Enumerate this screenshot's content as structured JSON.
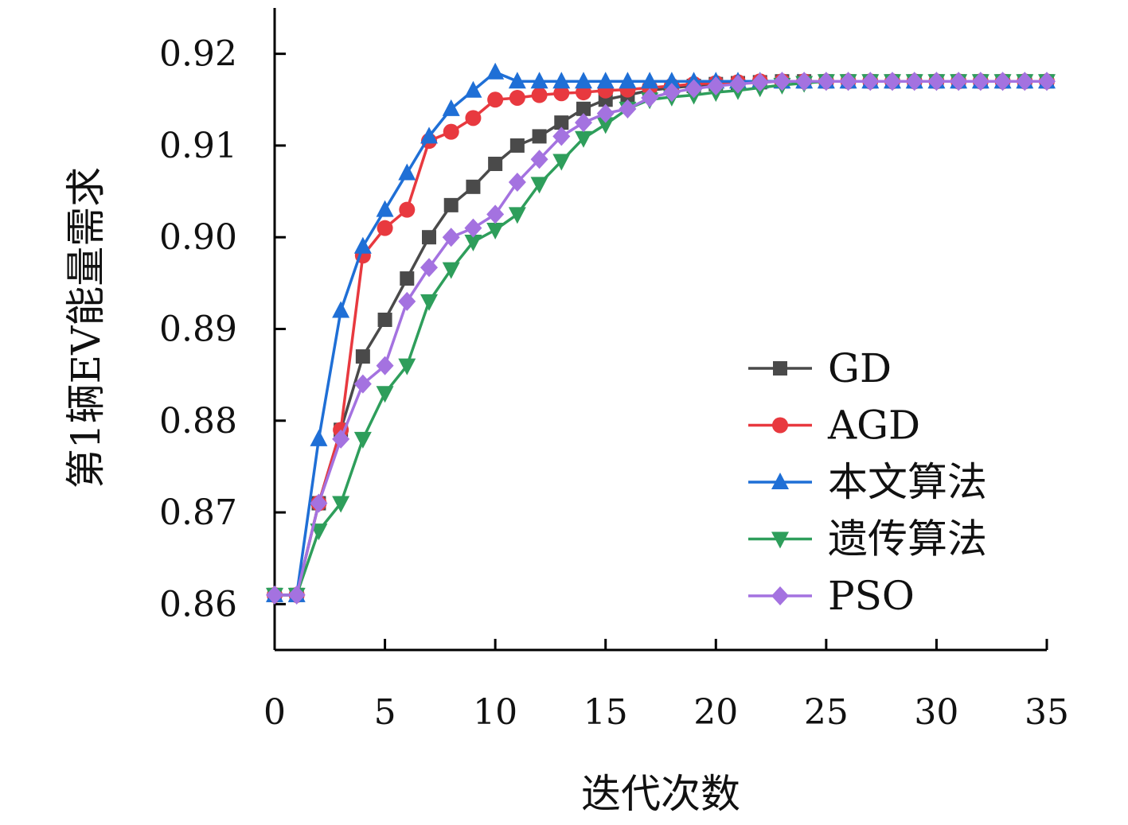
{
  "chart_data": {
    "type": "line",
    "xlabel": "迭代次数",
    "ylabel": "第1辆EV能量需求",
    "xlim": [
      0,
      35
    ],
    "ylim": [
      0.855,
      0.925
    ],
    "x_ticks": [
      "0",
      "5",
      "10",
      "15",
      "20",
      "25",
      "30",
      "35"
    ],
    "y_ticks": [
      "0.86",
      "0.87",
      "0.88",
      "0.89",
      "0.90",
      "0.91",
      "0.92"
    ],
    "grid": false,
    "legend_position": "bottom-right",
    "x": [
      0,
      1,
      2,
      3,
      4,
      5,
      6,
      7,
      8,
      9,
      10,
      11,
      12,
      13,
      14,
      15,
      16,
      17,
      18,
      19,
      20,
      21,
      22,
      23,
      24,
      25,
      26,
      27,
      28,
      29,
      30,
      31,
      32,
      33,
      34,
      35
    ],
    "series": [
      {
        "name": "GD",
        "color": "#4a4a4a",
        "marker": "square",
        "values": [
          0.861,
          0.861,
          0.871,
          0.879,
          0.887,
          0.891,
          0.8955,
          0.9,
          0.9035,
          0.9055,
          0.908,
          0.91,
          0.911,
          0.9125,
          0.914,
          0.915,
          0.9155,
          0.916,
          0.9163,
          0.9165,
          0.9167,
          0.9168,
          0.9169,
          0.917,
          0.917,
          0.917,
          0.917,
          0.917,
          0.917,
          0.917,
          0.917,
          0.917,
          0.917,
          0.917,
          0.917,
          0.917
        ]
      },
      {
        "name": "AGD",
        "color": "#e8393f",
        "marker": "circle",
        "values": [
          0.861,
          0.861,
          0.871,
          0.879,
          0.898,
          0.901,
          0.903,
          0.9105,
          0.9115,
          0.913,
          0.915,
          0.9152,
          0.9155,
          0.9157,
          0.9158,
          0.916,
          0.9161,
          0.9163,
          0.9165,
          0.9167,
          0.9168,
          0.9169,
          0.917,
          0.917,
          0.917,
          0.917,
          0.917,
          0.917,
          0.917,
          0.917,
          0.917,
          0.917,
          0.917,
          0.917,
          0.917,
          0.917
        ]
      },
      {
        "name": "本文算法",
        "color": "#1f6fd6",
        "marker": "triangle-up",
        "values": [
          0.861,
          0.861,
          0.878,
          0.892,
          0.899,
          0.903,
          0.907,
          0.911,
          0.914,
          0.916,
          0.918,
          0.917,
          0.917,
          0.917,
          0.917,
          0.917,
          0.917,
          0.917,
          0.917,
          0.917,
          0.917,
          0.917,
          0.917,
          0.917,
          0.917,
          0.917,
          0.917,
          0.917,
          0.917,
          0.917,
          0.917,
          0.917,
          0.917,
          0.917,
          0.917,
          0.917
        ]
      },
      {
        "name": "遗传算法",
        "color": "#2e9e5b",
        "marker": "triangle-down",
        "values": [
          0.861,
          0.861,
          0.868,
          0.871,
          0.878,
          0.883,
          0.886,
          0.893,
          0.8965,
          0.8995,
          0.9008,
          0.9025,
          0.9058,
          0.9083,
          0.9108,
          0.9123,
          0.914,
          0.915,
          0.9153,
          0.9155,
          0.9158,
          0.916,
          0.9163,
          0.9166,
          0.9168,
          0.917,
          0.917,
          0.917,
          0.917,
          0.917,
          0.917,
          0.917,
          0.917,
          0.917,
          0.917,
          0.917
        ]
      },
      {
        "name": "PSO",
        "color": "#a472e0",
        "marker": "diamond",
        "values": [
          0.861,
          0.861,
          0.871,
          0.878,
          0.884,
          0.886,
          0.893,
          0.8967,
          0.9,
          0.901,
          0.9025,
          0.906,
          0.9085,
          0.911,
          0.9125,
          0.9135,
          0.914,
          0.9152,
          0.9158,
          0.9162,
          0.9165,
          0.9167,
          0.9169,
          0.917,
          0.917,
          0.917,
          0.917,
          0.917,
          0.917,
          0.917,
          0.917,
          0.917,
          0.917,
          0.917,
          0.917,
          0.917
        ]
      }
    ]
  }
}
